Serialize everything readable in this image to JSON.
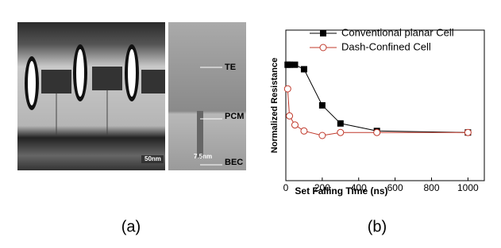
{
  "figure_a": {
    "labels": [
      "TE",
      "PCM",
      "BEC"
    ],
    "dimension": "7.5nm",
    "scale_bar": "50nm",
    "caption": "(a)"
  },
  "chart_data": {
    "type": "line",
    "xlabel": "Set Falling Time (ns)",
    "ylabel": "Normalized Resistance",
    "caption": "(b)",
    "x": [
      10,
      20,
      50,
      100,
      200,
      300,
      500,
      1000
    ],
    "series": [
      {
        "name": "Conventional planar Cell",
        "color": "#000000",
        "marker": "square",
        "values": [
          0.77,
          0.77,
          0.77,
          0.74,
          0.5,
          0.38,
          0.33,
          0.32
        ]
      },
      {
        "name": "Dash-Confined Cell",
        "color": "#c0392b",
        "marker": "circle",
        "values": [
          0.61,
          0.43,
          0.37,
          0.33,
          0.3,
          0.32,
          0.32,
          0.32
        ]
      }
    ],
    "xlim": [
      0,
      1090
    ],
    "ylim": [
      0,
      1
    ],
    "xticks": [
      0,
      200,
      400,
      600,
      800,
      1000
    ],
    "legend": "top-right"
  }
}
